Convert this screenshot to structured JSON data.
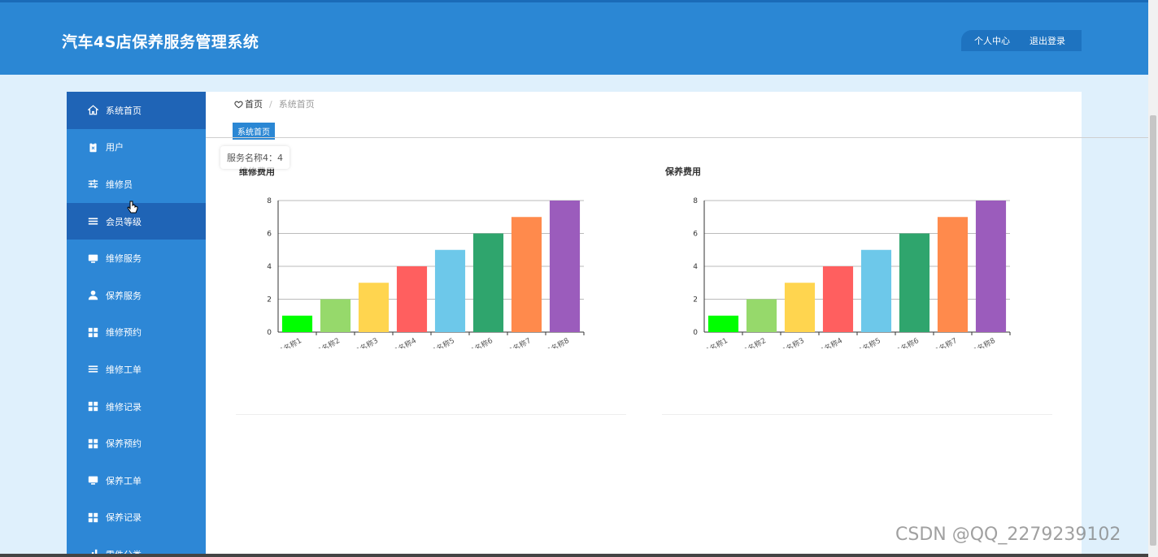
{
  "header": {
    "title": "汽车4S店保养服务管理系统",
    "profile_label": "个人中心",
    "logout_label": "退出登录"
  },
  "sidebar": {
    "items": [
      {
        "label": "系统首页",
        "icon": "home-icon",
        "active": true
      },
      {
        "label": "用户",
        "icon": "clipboard-icon",
        "active": false
      },
      {
        "label": "维修员",
        "icon": "sliders-icon",
        "active": false
      },
      {
        "label": "会员等级",
        "icon": "list-icon",
        "active": true
      },
      {
        "label": "维修服务",
        "icon": "monitor-icon",
        "active": false
      },
      {
        "label": "保养服务",
        "icon": "user-icon",
        "active": false
      },
      {
        "label": "维修预约",
        "icon": "grid-icon",
        "active": false
      },
      {
        "label": "维修工单",
        "icon": "list-icon",
        "active": false
      },
      {
        "label": "维修记录",
        "icon": "grid-icon",
        "active": false
      },
      {
        "label": "保养预约",
        "icon": "grid-icon",
        "active": false
      },
      {
        "label": "保养工单",
        "icon": "monitor-icon",
        "active": false
      },
      {
        "label": "保养记录",
        "icon": "grid-icon",
        "active": false
      },
      {
        "label": "零件分类",
        "icon": "chart-icon",
        "active": false
      }
    ]
  },
  "breadcrumb": {
    "home": "首页",
    "separator": "/",
    "current": "系统首页"
  },
  "tab": {
    "label": "系统首页"
  },
  "tooltip": {
    "text": "服务名称4：4"
  },
  "watermark": "CSDN @QQ_2279239102",
  "colors": {
    "header": "#2b87d4",
    "sidebar": "#2d87d6",
    "sidebar_active": "#1f64b6"
  },
  "chart_data": [
    {
      "type": "bar",
      "title": "维修费用",
      "categories": [
        "服务名称1",
        "服务名称2",
        "服务名称3",
        "服务名称4",
        "服务名称5",
        "服务名称6",
        "服务名称7",
        "服务名称8"
      ],
      "values": [
        1,
        2,
        3,
        4,
        5,
        6,
        7,
        8
      ],
      "colors": [
        "#00ff00",
        "#96d96b",
        "#ffd54f",
        "#ff5f5f",
        "#6dc8ea",
        "#2fa56d",
        "#ff8a4c",
        "#9b5cbc"
      ],
      "ylim": [
        0,
        8
      ],
      "yticks": [
        0,
        2,
        4,
        6,
        8
      ],
      "xlabel": "",
      "ylabel": ""
    },
    {
      "type": "bar",
      "title": "保养费用",
      "categories": [
        "服务名称1",
        "服务名称2",
        "服务名称3",
        "服务名称4",
        "服务名称5",
        "服务名称6",
        "服务名称7",
        "服务名称8"
      ],
      "values": [
        1,
        2,
        3,
        4,
        5,
        6,
        7,
        8
      ],
      "colors": [
        "#00ff00",
        "#96d96b",
        "#ffd54f",
        "#ff5f5f",
        "#6dc8ea",
        "#2fa56d",
        "#ff8a4c",
        "#9b5cbc"
      ],
      "ylim": [
        0,
        8
      ],
      "yticks": [
        0,
        2,
        4,
        6,
        8
      ],
      "xlabel": "",
      "ylabel": ""
    }
  ]
}
